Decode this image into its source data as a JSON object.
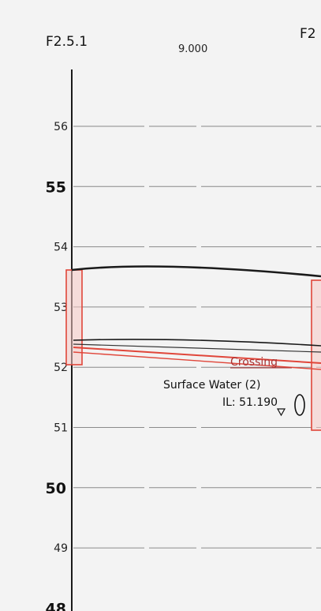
{
  "header": {
    "left_node": "F2.5.1",
    "right_node": "F2",
    "distance": "9.000"
  },
  "axis": {
    "ticks": [
      {
        "value": 56,
        "label": "56",
        "major": false
      },
      {
        "value": 55,
        "label": "55",
        "major": true
      },
      {
        "value": 54,
        "label": "54",
        "major": false
      },
      {
        "value": 53,
        "label": "53",
        "major": false
      },
      {
        "value": 52,
        "label": "52",
        "major": false
      },
      {
        "value": 51,
        "label": "51",
        "major": false
      },
      {
        "value": 50,
        "label": "50",
        "major": true
      },
      {
        "value": 49,
        "label": "49",
        "major": false
      },
      {
        "value": 48,
        "label": "48",
        "major": true
      }
    ]
  },
  "annotations": {
    "crossing": "Crossing",
    "pipe_name": "Surface Water (2)",
    "invert_level": "IL: 51.190"
  },
  "colors": {
    "ground": "#1a1a1a",
    "pipe": "#e0463a",
    "grid": "#8a8a8a",
    "manhole_fill": "#f6c9c5"
  }
}
